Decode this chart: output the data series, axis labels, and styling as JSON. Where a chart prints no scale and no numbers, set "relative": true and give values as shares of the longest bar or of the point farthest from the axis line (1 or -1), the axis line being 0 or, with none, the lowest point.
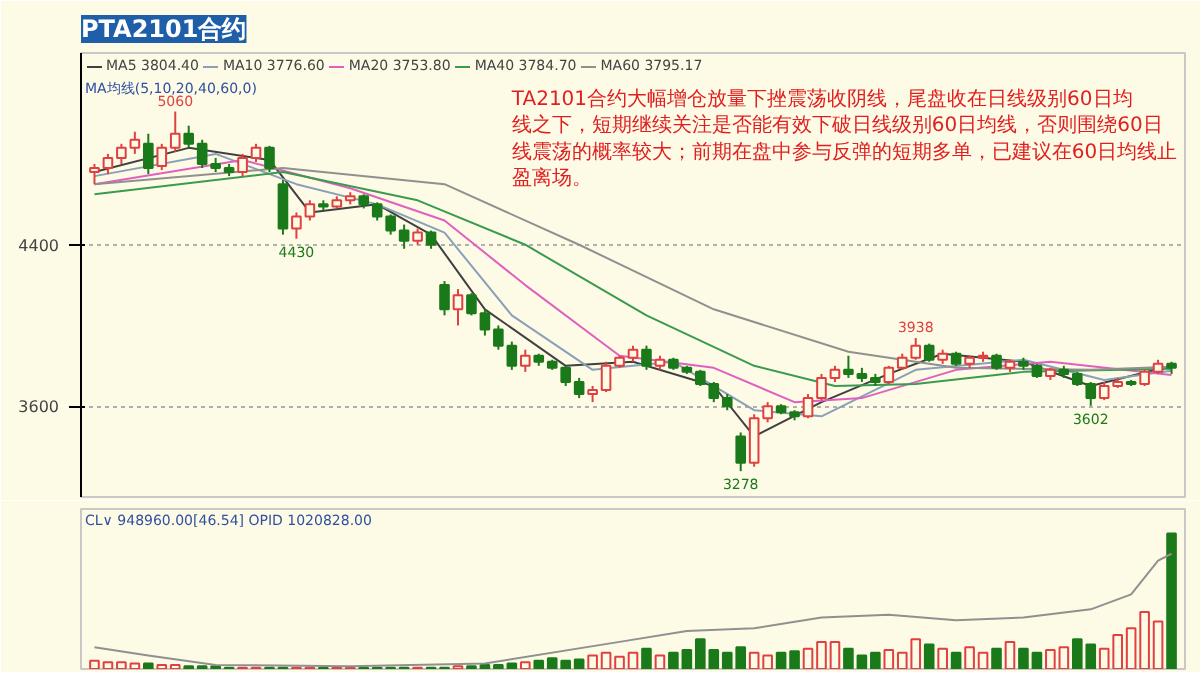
{
  "chart_data": [
    {
      "type": "candlestick",
      "title": "PTA2101合约",
      "categories": [
        null,
        null,
        null,
        null,
        null,
        null,
        null,
        null,
        null,
        null,
        null,
        null,
        null,
        null,
        null,
        null,
        null,
        null,
        null,
        null,
        null,
        null,
        null,
        null,
        null,
        null,
        null,
        null,
        null,
        null,
        null,
        null,
        null,
        null,
        null,
        null,
        null,
        null,
        null,
        null,
        null,
        null,
        null,
        null,
        null,
        null,
        null,
        null,
        null,
        null,
        null,
        null,
        null,
        null,
        null,
        null,
        null,
        null,
        null,
        null,
        null,
        null,
        null,
        null,
        null,
        null,
        null,
        null,
        null,
        null,
        null,
        null,
        null,
        null,
        null,
        null,
        null,
        null,
        null,
        null,
        null
      ],
      "ohlc": [
        [
          4760,
          4800,
          4700,
          4780
        ],
        [
          4780,
          4850,
          4750,
          4830
        ],
        [
          4830,
          4900,
          4800,
          4880
        ],
        [
          4880,
          4960,
          4850,
          4920
        ],
        [
          4900,
          4950,
          4750,
          4780
        ],
        [
          4790,
          4900,
          4770,
          4880
        ],
        [
          4880,
          5060,
          4860,
          4950
        ],
        [
          4950,
          4990,
          4880,
          4900
        ],
        [
          4900,
          4920,
          4780,
          4800
        ],
        [
          4800,
          4830,
          4760,
          4780
        ],
        [
          4780,
          4800,
          4740,
          4760
        ],
        [
          4760,
          4850,
          4740,
          4830
        ],
        [
          4830,
          4900,
          4810,
          4880
        ],
        [
          4880,
          4890,
          4760,
          4780
        ],
        [
          4700,
          4720,
          4450,
          4480
        ],
        [
          4480,
          4560,
          4430,
          4540
        ],
        [
          4540,
          4620,
          4520,
          4600
        ],
        [
          4600,
          4620,
          4570,
          4590
        ],
        [
          4590,
          4640,
          4580,
          4620
        ],
        [
          4620,
          4660,
          4600,
          4640
        ],
        [
          4640,
          4650,
          4580,
          4600
        ],
        [
          4600,
          4610,
          4520,
          4540
        ],
        [
          4540,
          4550,
          4450,
          4470
        ],
        [
          4470,
          4500,
          4380,
          4420
        ],
        [
          4420,
          4480,
          4400,
          4460
        ],
        [
          4460,
          4470,
          4380,
          4400
        ],
        [
          4200,
          4220,
          4050,
          4080
        ],
        [
          4080,
          4180,
          4000,
          4150
        ],
        [
          4150,
          4160,
          4050,
          4060
        ],
        [
          4060,
          4080,
          3950,
          3980
        ],
        [
          3980,
          4000,
          3880,
          3900
        ],
        [
          3900,
          3920,
          3780,
          3800
        ],
        [
          3800,
          3880,
          3770,
          3850
        ],
        [
          3850,
          3860,
          3800,
          3820
        ],
        [
          3820,
          3830,
          3780,
          3790
        ],
        [
          3790,
          3800,
          3700,
          3720
        ],
        [
          3720,
          3740,
          3640,
          3660
        ],
        [
          3660,
          3700,
          3620,
          3680
        ],
        [
          3680,
          3820,
          3670,
          3800
        ],
        [
          3800,
          3850,
          3790,
          3840
        ],
        [
          3840,
          3900,
          3820,
          3880
        ],
        [
          3880,
          3900,
          3780,
          3800
        ],
        [
          3800,
          3850,
          3780,
          3830
        ],
        [
          3830,
          3840,
          3780,
          3790
        ],
        [
          3790,
          3800,
          3760,
          3770
        ],
        [
          3770,
          3780,
          3700,
          3710
        ],
        [
          3710,
          3720,
          3620,
          3640
        ],
        [
          3640,
          3660,
          3580,
          3600
        ],
        [
          3450,
          3470,
          3278,
          3320
        ],
        [
          3320,
          3560,
          3300,
          3540
        ],
        [
          3540,
          3620,
          3520,
          3600
        ],
        [
          3600,
          3610,
          3560,
          3570
        ],
        [
          3570,
          3580,
          3530,
          3550
        ],
        [
          3550,
          3660,
          3540,
          3640
        ],
        [
          3640,
          3760,
          3630,
          3740
        ],
        [
          3740,
          3800,
          3720,
          3780
        ],
        [
          3780,
          3850,
          3740,
          3760
        ],
        [
          3760,
          3790,
          3720,
          3740
        ],
        [
          3740,
          3760,
          3700,
          3720
        ],
        [
          3720,
          3800,
          3710,
          3790
        ],
        [
          3790,
          3860,
          3780,
          3840
        ],
        [
          3840,
          3938,
          3830,
          3900
        ],
        [
          3900,
          3910,
          3820,
          3830
        ],
        [
          3830,
          3880,
          3810,
          3860
        ],
        [
          3860,
          3870,
          3800,
          3810
        ],
        [
          3810,
          3850,
          3790,
          3840
        ],
        [
          3840,
          3870,
          3820,
          3850
        ],
        [
          3850,
          3860,
          3780,
          3790
        ],
        [
          3790,
          3830,
          3770,
          3820
        ],
        [
          3820,
          3840,
          3780,
          3800
        ],
        [
          3800,
          3810,
          3740,
          3750
        ],
        [
          3750,
          3790,
          3730,
          3780
        ],
        [
          3780,
          3800,
          3740,
          3760
        ],
        [
          3760,
          3770,
          3700,
          3710
        ],
        [
          3710,
          3720,
          3602,
          3640
        ],
        [
          3640,
          3720,
          3630,
          3700
        ],
        [
          3700,
          3740,
          3690,
          3720
        ],
        [
          3720,
          3730,
          3700,
          3710
        ],
        [
          3710,
          3780,
          3700,
          3770
        ],
        [
          3770,
          3830,
          3760,
          3810
        ],
        [
          3810,
          3820,
          3760,
          3790
        ]
      ],
      "series": [
        {
          "name": "MA5 3804.40",
          "type": "line",
          "color": "#404040",
          "values": [
            4760,
            null,
            null,
            null,
            null,
            null,
            null,
            4880,
            null,
            null,
            null,
            null,
            null,
            4820,
            null,
            null,
            4560,
            null,
            null,
            null,
            null,
            4600,
            null,
            null,
            null,
            4450,
            null,
            null,
            null,
            4080,
            null,
            null,
            null,
            null,
            null,
            3800,
            null,
            null,
            null,
            null,
            3820,
            null,
            null,
            null,
            null,
            null,
            3700,
            null,
            null,
            3450,
            null,
            null,
            null,
            null,
            3620,
            null,
            null,
            null,
            null,
            3760,
            null,
            null,
            null,
            3860,
            null,
            null,
            null,
            null,
            null,
            3820,
            null,
            null,
            null,
            null,
            3700,
            null,
            null,
            null,
            null,
            null,
            3800
          ]
        },
        {
          "name": "MA10 3776.60",
          "type": "line",
          "color": "#8aa0b8",
          "values": [
            4740,
            null,
            null,
            null,
            null,
            null,
            null,
            null,
            null,
            4850,
            null,
            null,
            null,
            null,
            null,
            4700,
            null,
            null,
            null,
            null,
            null,
            4600,
            null,
            null,
            null,
            null,
            4460,
            null,
            null,
            null,
            null,
            4050,
            null,
            null,
            null,
            null,
            null,
            3780,
            null,
            null,
            null,
            null,
            null,
            3820,
            null,
            null,
            null,
            null,
            null,
            3580,
            null,
            null,
            null,
            null,
            3550,
            null,
            null,
            null,
            null,
            null,
            null,
            3780,
            null,
            null,
            null,
            null,
            null,
            null,
            null,
            3830,
            null,
            null,
            null,
            null,
            null,
            3730,
            null,
            null,
            null,
            null,
            3776
          ]
        },
        {
          "name": "MA20 3753.80",
          "type": "line",
          "color": "#e060c0",
          "values": [
            4700,
            null,
            null,
            null,
            null,
            null,
            null,
            null,
            null,
            null,
            null,
            4820,
            null,
            null,
            null,
            null,
            null,
            null,
            null,
            4680,
            null,
            null,
            null,
            null,
            null,
            null,
            4520,
            null,
            null,
            null,
            null,
            null,
            4200,
            null,
            null,
            null,
            null,
            null,
            null,
            3850,
            null,
            null,
            null,
            null,
            null,
            null,
            3790,
            null,
            null,
            null,
            null,
            null,
            3620,
            null,
            null,
            null,
            null,
            3640,
            null,
            null,
            null,
            null,
            null,
            null,
            3780,
            null,
            null,
            null,
            null,
            null,
            null,
            3820,
            null,
            null,
            null,
            null,
            null,
            null,
            null,
            null,
            3754
          ]
        },
        {
          "name": "MA40 3784.70",
          "type": "line",
          "color": "#3a9a50",
          "values": [
            4650,
            null,
            null,
            null,
            null,
            null,
            null,
            null,
            null,
            null,
            null,
            null,
            null,
            null,
            4760,
            null,
            null,
            null,
            null,
            null,
            null,
            null,
            null,
            null,
            4620,
            null,
            null,
            null,
            null,
            null,
            null,
            null,
            4400,
            null,
            null,
            null,
            null,
            null,
            null,
            null,
            null,
            4050,
            null,
            null,
            null,
            null,
            null,
            null,
            null,
            3800,
            null,
            null,
            null,
            null,
            null,
            3700,
            null,
            null,
            null,
            null,
            null,
            3710,
            null,
            null,
            null,
            null,
            null,
            null,
            null,
            3770,
            null,
            null,
            null,
            null,
            null,
            null,
            null,
            null,
            null,
            null,
            3785
          ]
        },
        {
          "name": "MA60 3795.17",
          "type": "line",
          "color": "#909090",
          "values": [
            4700,
            null,
            null,
            null,
            null,
            null,
            null,
            null,
            null,
            null,
            null,
            null,
            null,
            null,
            4780,
            null,
            null,
            null,
            null,
            null,
            null,
            null,
            null,
            null,
            null,
            null,
            4700,
            null,
            null,
            null,
            null,
            null,
            null,
            null,
            null,
            null,
            4400,
            null,
            null,
            null,
            null,
            null,
            null,
            null,
            null,
            null,
            4080,
            null,
            null,
            null,
            null,
            null,
            null,
            null,
            null,
            null,
            3870,
            null,
            null,
            null,
            null,
            null,
            null,
            null,
            3790,
            null,
            null,
            null,
            null,
            null,
            null,
            null,
            null,
            null,
            3780,
            null,
            null,
            null,
            null,
            null,
            3795
          ]
        }
      ],
      "ylim": [
        3150,
        5350
      ],
      "yticks": [
        4400,
        3600
      ],
      "grid": "y",
      "legend": "top left",
      "line_style": "solid",
      "marker": "none",
      "annotations": [
        {
          "text": "5060",
          "y": 5060
        },
        {
          "text": "4430",
          "y": 4430
        },
        {
          "text": "3278",
          "y": 3278
        },
        {
          "text": "3938",
          "y": 3938
        },
        {
          "text": "3602",
          "y": 3602
        },
        "MA均线(5,10,20,40,60,0)",
        "TA2101合约大幅增仓放量下挫震荡收阴线，尾盘收在日线级别60日均线之下，短期继续关注是否能有效下破日线级别60日均线，否则围绕60日线震荡的概率较大；前期在盘中参与反弹的短期多单，已建议在60日均线止盈离场。"
      ]
    },
    {
      "type": "bar",
      "relative": true,
      "categories": [
        null,
        null,
        null,
        null,
        null,
        null,
        null,
        null,
        null,
        null,
        null,
        null,
        null,
        null,
        null,
        null,
        null,
        null,
        null,
        null,
        null,
        null,
        null,
        null,
        null,
        null,
        null,
        null,
        null,
        null,
        null,
        null,
        null,
        null,
        null,
        null,
        null,
        null,
        null,
        null,
        null,
        null,
        null,
        null,
        null,
        null,
        null,
        null,
        null,
        null,
        null,
        null,
        null,
        null,
        null,
        null,
        null,
        null,
        null,
        null,
        null,
        null,
        null,
        null,
        null,
        null,
        null,
        null,
        null,
        null,
        null,
        null,
        null,
        null,
        null,
        null,
        null,
        null,
        null,
        null,
        null
      ],
      "series": [
        {
          "type": "bar",
          "color": "#1a7a1a",
          "values": [
            0.06,
            0.05,
            0.05,
            0.04,
            0.04,
            0.03,
            0.03,
            0.02,
            0.02,
            0.02,
            0.01,
            0.01,
            0.01,
            0.01,
            0.01,
            0.01,
            0.01,
            0.01,
            0.01,
            0.01,
            0.01,
            0.01,
            0.01,
            0.01,
            0.01,
            0.01,
            0.01,
            0.02,
            0.02,
            0.03,
            0.03,
            0.04,
            0.05,
            0.06,
            0.08,
            0.06,
            0.07,
            0.1,
            0.12,
            0.09,
            0.12,
            0.15,
            0.1,
            0.12,
            0.14,
            0.22,
            0.14,
            0.12,
            0.16,
            0.12,
            0.1,
            0.12,
            0.13,
            0.15,
            0.2,
            0.2,
            0.15,
            0.1,
            0.12,
            0.14,
            0.12,
            0.22,
            0.18,
            0.15,
            0.12,
            0.16,
            0.12,
            0.15,
            0.2,
            0.15,
            0.12,
            0.14,
            0.16,
            0.22,
            0.18,
            0.15,
            0.25,
            0.3,
            0.42,
            0.35,
            1.0
          ],
          "colors": [
            "#e04040",
            "#e04040",
            "#e04040",
            "#e04040",
            "#1a7a1a",
            "#e04040",
            "#e04040",
            "#1a7a1a",
            "#1a7a1a",
            "#1a7a1a",
            "#1a7a1a",
            "#e04040",
            "#e04040",
            "#1a7a1a",
            "#1a7a1a",
            "#e04040",
            "#e04040",
            "#1a7a1a",
            "#e04040",
            "#e04040",
            "#1a7a1a",
            "#1a7a1a",
            "#1a7a1a",
            "#1a7a1a",
            "#e04040",
            "#1a7a1a",
            "#1a7a1a",
            "#e04040",
            "#1a7a1a",
            "#1a7a1a",
            "#1a7a1a",
            "#1a7a1a",
            "#e04040",
            "#1a7a1a",
            "#1a7a1a",
            "#1a7a1a",
            "#1a7a1a",
            "#e04040",
            "#e04040",
            "#e04040",
            "#e04040",
            "#1a7a1a",
            "#e04040",
            "#1a7a1a",
            "#1a7a1a",
            "#1a7a1a",
            "#1a7a1a",
            "#1a7a1a",
            "#1a7a1a",
            "#e04040",
            "#e04040",
            "#1a7a1a",
            "#1a7a1a",
            "#e04040",
            "#e04040",
            "#e04040",
            "#1a7a1a",
            "#1a7a1a",
            "#1a7a1a",
            "#e04040",
            "#e04040",
            "#e04040",
            "#1a7a1a",
            "#e04040",
            "#1a7a1a",
            "#e04040",
            "#e04040",
            "#1a7a1a",
            "#e04040",
            "#1a7a1a",
            "#1a7a1a",
            "#e04040",
            "#e04040",
            "#1a7a1a",
            "#1a7a1a",
            "#e04040",
            "#e04040",
            "#e04040",
            "#e04040",
            "#e04040",
            "#1a7a1a"
          ]
        },
        {
          "type": "line",
          "color": "#909090",
          "values": [
            0.16,
            null,
            null,
            null,
            0.1,
            null,
            null,
            null,
            null,
            0.03,
            null,
            null,
            null,
            null,
            null,
            null,
            null,
            null,
            null,
            0.02,
            null,
            null,
            null,
            null,
            null,
            null,
            null,
            null,
            null,
            0.04,
            null,
            null,
            null,
            null,
            null,
            null,
            null,
            null,
            null,
            0.2,
            null,
            null,
            null,
            null,
            0.28,
            null,
            null,
            null,
            null,
            0.3,
            null,
            null,
            null,
            null,
            0.38,
            null,
            null,
            null,
            null,
            0.4,
            null,
            null,
            null,
            null,
            0.36,
            null,
            null,
            null,
            null,
            0.38,
            null,
            null,
            null,
            null,
            0.44,
            null,
            null,
            0.55,
            null,
            0.8,
            0.85
          ]
        }
      ],
      "annotations": [
        "CL∨ 948960.00[46.54] OPID 1020828.00"
      ]
    }
  ]
}
